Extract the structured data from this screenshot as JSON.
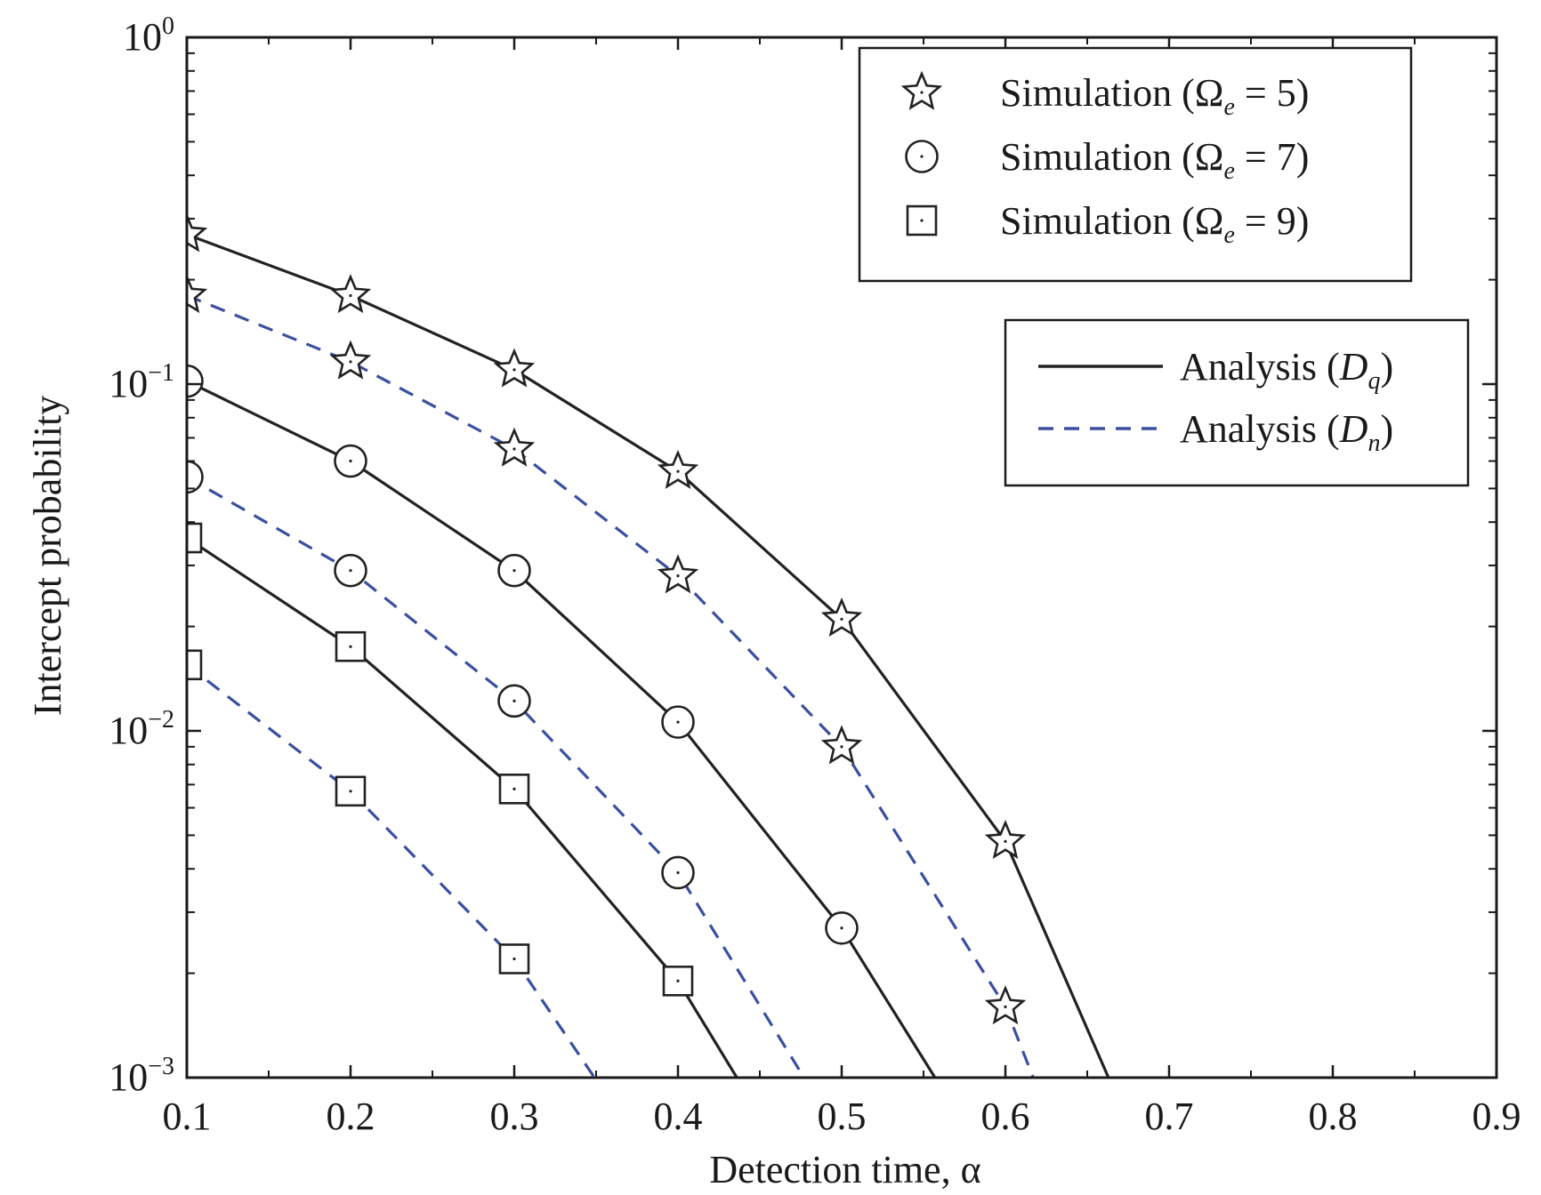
{
  "chart_data": {
    "type": "line",
    "xlabel": "Detection time, α",
    "ylabel": "Intercept probability",
    "y_scale": "log",
    "xlim": [
      0.1,
      0.9
    ],
    "ylim": [
      0.001,
      1
    ],
    "x_ticks": [
      "0.1",
      "0.2",
      "0.3",
      "0.4",
      "0.5",
      "0.6",
      "0.7",
      "0.8",
      "0.9"
    ],
    "x_tick_values": [
      0.1,
      0.2,
      0.3,
      0.4,
      0.5,
      0.6,
      0.7,
      0.8,
      0.9
    ],
    "y_ticks": [
      {
        "base": "10",
        "exp": "0",
        "value": 1
      },
      {
        "base": "10",
        "exp": "−1",
        "value": 0.1
      },
      {
        "base": "10",
        "exp": "−2",
        "value": 0.01
      },
      {
        "base": "10",
        "exp": "−3",
        "value": 0.001
      }
    ],
    "colors": {
      "solid": "#222222",
      "dashed": "#3a4fa0",
      "axis": "#1a1a1a"
    },
    "analysis_lines": [
      {
        "group": "Ωe=5",
        "style": "solid",
        "x": [
          0.1,
          0.2,
          0.3,
          0.4,
          0.5,
          0.6,
          0.663
        ],
        "y": [
          0.27,
          0.18,
          0.11,
          0.056,
          0.021,
          0.0048,
          0.001
        ]
      },
      {
        "group": "Ωe=5",
        "style": "dashed",
        "x": [
          0.1,
          0.2,
          0.3,
          0.4,
          0.5,
          0.6,
          0.617
        ],
        "y": [
          0.18,
          0.116,
          0.065,
          0.028,
          0.009,
          0.0016,
          0.001
        ]
      },
      {
        "group": "Ωe=7",
        "style": "solid",
        "x": [
          0.1,
          0.2,
          0.3,
          0.4,
          0.5,
          0.557
        ],
        "y": [
          0.102,
          0.06,
          0.029,
          0.0106,
          0.0027,
          0.001
        ]
      },
      {
        "group": "Ωe=7",
        "style": "dashed",
        "x": [
          0.1,
          0.2,
          0.3,
          0.4,
          0.477
        ],
        "y": [
          0.054,
          0.029,
          0.0122,
          0.0039,
          0.001
        ]
      },
      {
        "group": "Ωe=9",
        "style": "solid",
        "x": [
          0.1,
          0.2,
          0.3,
          0.4,
          0.436
        ],
        "y": [
          0.036,
          0.0175,
          0.0068,
          0.0019,
          0.001
        ]
      },
      {
        "group": "Ωe=9",
        "style": "dashed",
        "x": [
          0.1,
          0.2,
          0.3,
          0.349
        ],
        "y": [
          0.0155,
          0.0067,
          0.0022,
          0.001
        ]
      }
    ],
    "simulation_points": [
      {
        "marker": "star",
        "x": [
          0.1,
          0.2,
          0.3,
          0.4,
          0.5,
          0.6
        ],
        "y": [
          0.27,
          0.18,
          0.11,
          0.056,
          0.021,
          0.0048
        ]
      },
      {
        "marker": "star",
        "x": [
          0.1,
          0.2,
          0.3,
          0.4,
          0.5,
          0.6
        ],
        "y": [
          0.18,
          0.116,
          0.065,
          0.028,
          0.009,
          0.0016
        ]
      },
      {
        "marker": "circle",
        "x": [
          0.1,
          0.2,
          0.3,
          0.4,
          0.5
        ],
        "y": [
          0.102,
          0.06,
          0.029,
          0.0106,
          0.0027
        ]
      },
      {
        "marker": "circle",
        "x": [
          0.1,
          0.2,
          0.3,
          0.4
        ],
        "y": [
          0.054,
          0.029,
          0.0122,
          0.0039
        ]
      },
      {
        "marker": "square",
        "x": [
          0.1,
          0.2,
          0.3,
          0.4
        ],
        "y": [
          0.036,
          0.0175,
          0.0068,
          0.0019
        ]
      },
      {
        "marker": "square",
        "x": [
          0.1,
          0.2,
          0.3
        ],
        "y": [
          0.0155,
          0.0067,
          0.0022
        ]
      }
    ],
    "legend_simulation": [
      {
        "marker": "star",
        "prefix": "Simulation (Ω",
        "sub": "e",
        "suffix": " = 5)"
      },
      {
        "marker": "circle",
        "prefix": "Simulation (Ω",
        "sub": "e",
        "suffix": " = 7)"
      },
      {
        "marker": "square",
        "prefix": "Simulation (Ω",
        "sub": "e",
        "suffix": " = 9)"
      }
    ],
    "legend_analysis": [
      {
        "style": "solid",
        "prefix": "Analysis (",
        "var": "D",
        "sub": "q",
        "suffix": ")"
      },
      {
        "style": "dashed",
        "prefix": "Analysis (",
        "var": "D",
        "sub": "n",
        "suffix": ")"
      }
    ],
    "legend_position": "top-right"
  }
}
